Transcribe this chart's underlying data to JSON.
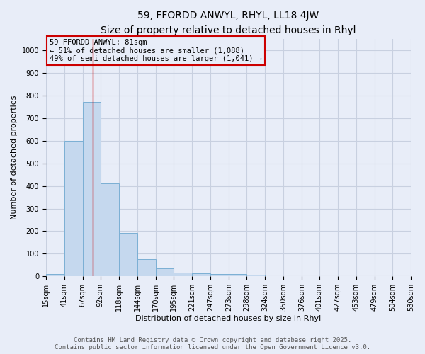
{
  "title1": "59, FFORDD ANWYL, RHYL, LL18 4JW",
  "title2": "Size of property relative to detached houses in Rhyl",
  "xlabel": "Distribution of detached houses by size in Rhyl",
  "ylabel": "Number of detached properties",
  "bin_edges": [
    15,
    41,
    67,
    92,
    118,
    144,
    170,
    195,
    221,
    247,
    273,
    298,
    324,
    350,
    376,
    401,
    427,
    453,
    479,
    504,
    530
  ],
  "bar_heights": [
    12,
    600,
    770,
    410,
    193,
    75,
    37,
    18,
    15,
    12,
    12,
    7,
    0,
    0,
    0,
    0,
    0,
    0,
    0,
    0
  ],
  "bar_color": "#c5d8ee",
  "bar_edge_color": "#7bafd4",
  "property_size": 81,
  "vline_color": "#cc0000",
  "annotation_text": "59 FFORDD ANWYL: 81sqm\n← 51% of detached houses are smaller (1,088)\n49% of semi-detached houses are larger (1,041) →",
  "annotation_box_edgecolor": "#cc0000",
  "ylim": [
    0,
    1050
  ],
  "yticks": [
    0,
    100,
    200,
    300,
    400,
    500,
    600,
    700,
    800,
    900,
    1000
  ],
  "footer_line1": "Contains HM Land Registry data © Crown copyright and database right 2025.",
  "footer_line2": "Contains public sector information licensed under the Open Government Licence v3.0.",
  "background_color": "#e8edf8",
  "grid_color": "#c8d0e0",
  "title_fontsize": 10,
  "subtitle_fontsize": 9,
  "axis_label_fontsize": 8,
  "tick_fontsize": 7,
  "annotation_fontsize": 7.5,
  "footer_fontsize": 6.5
}
